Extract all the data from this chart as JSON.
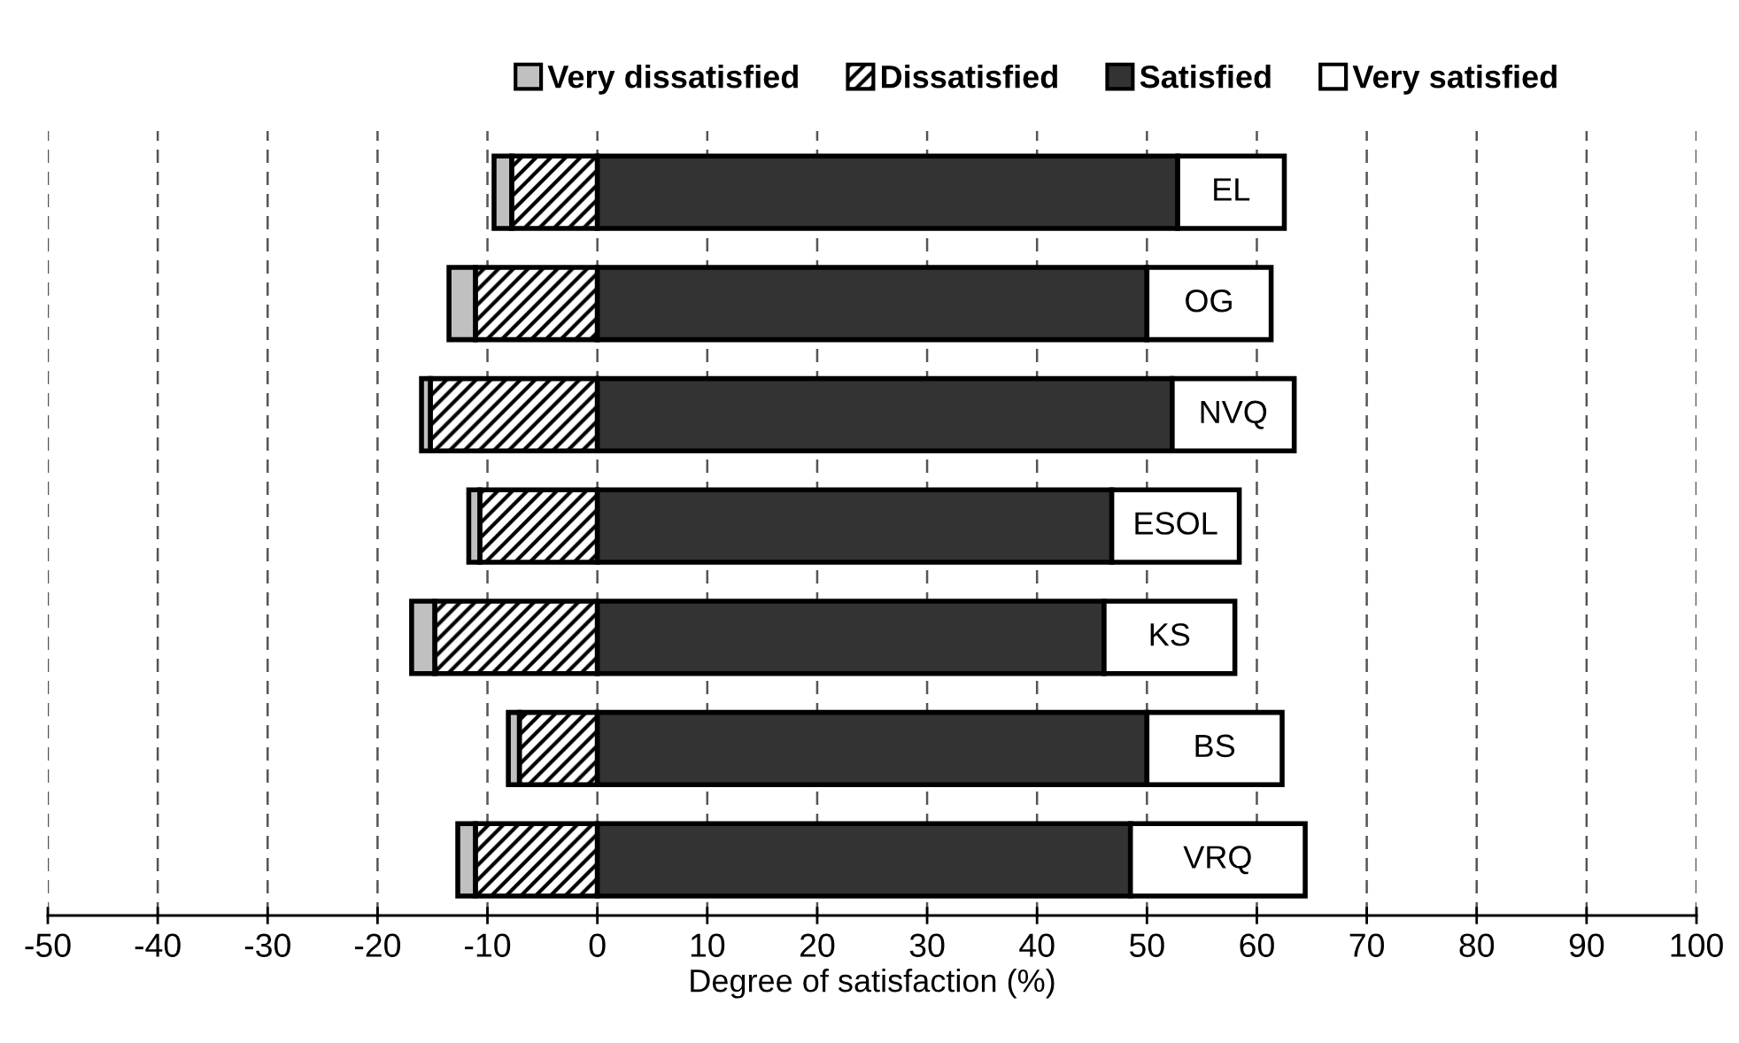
{
  "chart_data": {
    "type": "bar",
    "orientation": "horizontal",
    "stacked": true,
    "categories": [
      "EL",
      "OG",
      "NVQ",
      "ESOL",
      "KS",
      "BS",
      "VRQ"
    ],
    "series": [
      {
        "name": "Dissatisfied",
        "color": "#000000",
        "values": [
          -7.8,
          -11.1,
          -15.2,
          -10.7,
          -14.8,
          -7.1,
          -11.1
        ]
      },
      {
        "name": "Very dissatisfied",
        "color": "#c0c0c0",
        "values": [
          -1.6,
          -2.4,
          -0.8,
          -1.0,
          -2.1,
          -1.0,
          -1.6
        ]
      },
      {
        "name": "Satisfied",
        "color": "#333333",
        "values": [
          52.8,
          50.0,
          52.3,
          46.8,
          46.1,
          50.0,
          48.5
        ]
      },
      {
        "name": "Very satisfied",
        "color": "#ffffff",
        "values": [
          9.7,
          11.3,
          11.1,
          11.6,
          11.9,
          12.3,
          15.9
        ]
      }
    ],
    "xlabel": "Degree of satisfaction (%)",
    "xlim": [
      -50,
      100
    ],
    "xticks": [
      -50,
      -40,
      -30,
      -20,
      -10,
      0,
      10,
      20,
      30,
      40,
      50,
      60,
      70,
      80,
      90,
      100
    ],
    "grid": "x",
    "legend": "top",
    "tick_labels": "x"
  }
}
